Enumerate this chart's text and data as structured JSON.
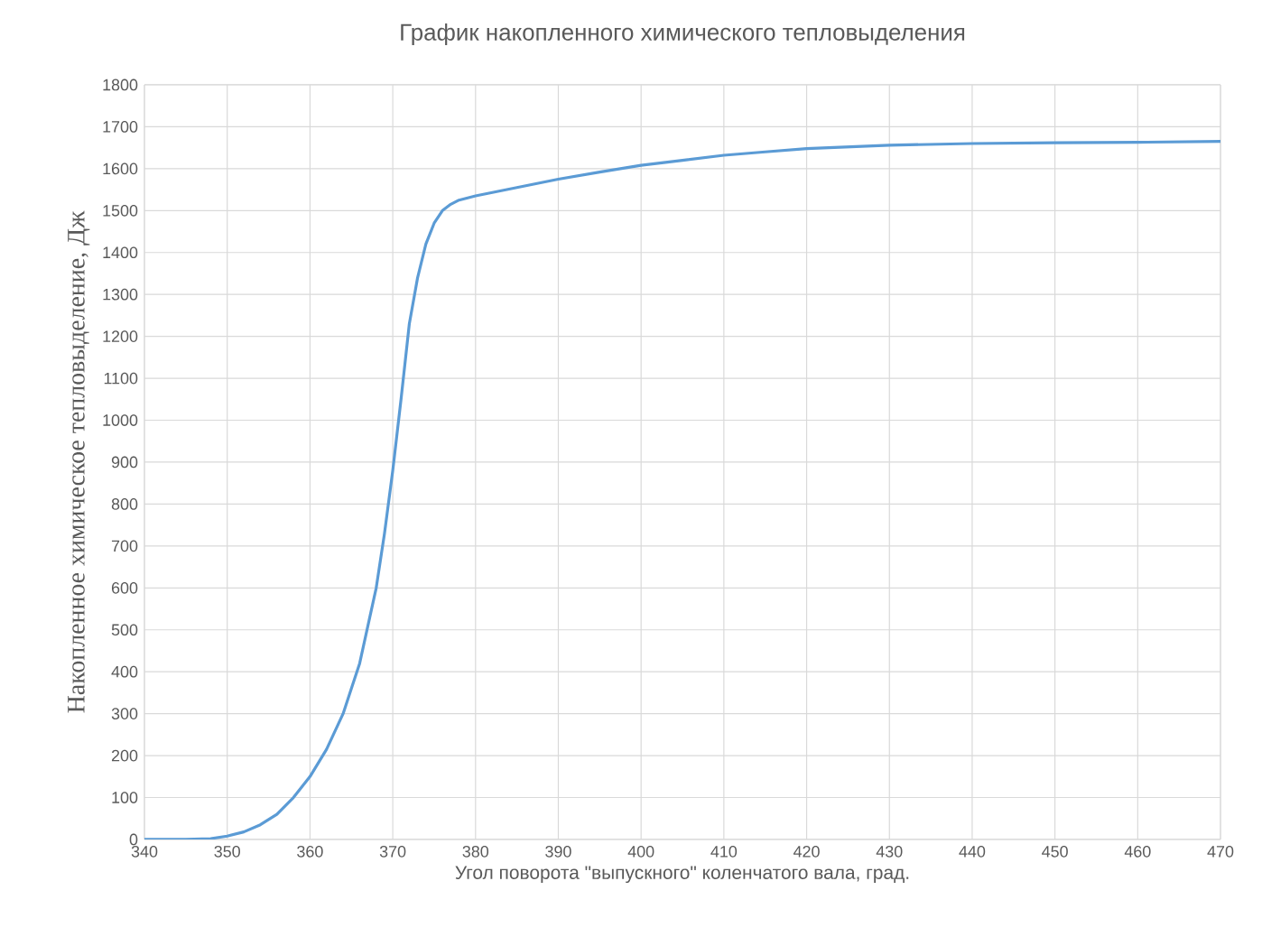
{
  "chart_data": {
    "type": "line",
    "title": "График накопленного химического тепловыделения",
    "xlabel": "Угол поворота \"выпускного\" коленчатого вала, град.",
    "ylabel": "Накопленное химическое тепловыделение, Дж",
    "x": [
      340,
      345,
      348,
      350,
      352,
      354,
      356,
      358,
      360,
      362,
      364,
      366,
      368,
      369,
      370,
      371,
      372,
      373,
      374,
      375,
      376,
      377,
      378,
      380,
      385,
      390,
      395,
      400,
      405,
      410,
      415,
      420,
      430,
      440,
      450,
      460,
      470
    ],
    "series": [
      {
        "color": "#5b9bd5",
        "values": [
          0,
          0,
          2,
          8,
          18,
          35,
          60,
          100,
          150,
          215,
          300,
          420,
          600,
          730,
          880,
          1050,
          1230,
          1340,
          1420,
          1470,
          1500,
          1515,
          1525,
          1535,
          1555,
          1575,
          1592,
          1608,
          1620,
          1632,
          1640,
          1648,
          1656,
          1660,
          1662,
          1663,
          1665
        ]
      }
    ],
    "xlim": [
      340,
      470
    ],
    "xticks": [
      340,
      350,
      360,
      370,
      380,
      390,
      400,
      410,
      420,
      430,
      440,
      450,
      460,
      470
    ],
    "ylim": [
      0,
      1800
    ],
    "yticks": [
      0,
      100,
      200,
      300,
      400,
      500,
      600,
      700,
      800,
      900,
      1000,
      1100,
      1200,
      1300,
      1400,
      1500,
      1600,
      1700,
      1800
    ],
    "grid": true,
    "marker": "none",
    "line_style": "solid"
  }
}
